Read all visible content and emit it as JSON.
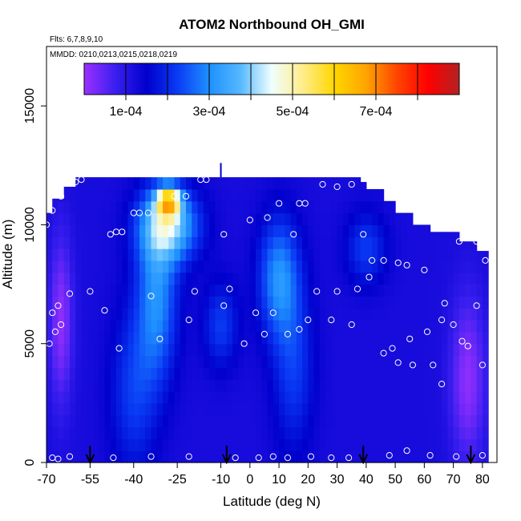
{
  "chart_data": {
    "type": "heatmap",
    "title": "ATOM2 Northbound OH_GMI",
    "notes": {
      "flights": "Flts: 6,7,8,9,10",
      "dates": "MMDD: 0210,0213,0215,0218,0219"
    },
    "xlabel": "Latitude (deg N)",
    "ylabel": "Altitude (m)",
    "xlim": [
      -70,
      85
    ],
    "ylim": [
      0,
      17500
    ],
    "x_ticks": [
      -70,
      -55,
      -40,
      -25,
      -10,
      0,
      10,
      20,
      30,
      40,
      50,
      60,
      70,
      80
    ],
    "y_ticks": [
      0,
      5000,
      10000,
      15000
    ],
    "colorbar": {
      "range": [
        0,
        0.0009
      ],
      "tick_values": [
        0.0001,
        0.0003,
        0.0005,
        0.0007
      ],
      "tick_labels": [
        "1e-04",
        "3e-04",
        "5e-04",
        "7e-04"
      ],
      "colors": [
        "#9b30ff",
        "#3a1ff0",
        "#0000cd",
        "#0a3cf5",
        "#1e90ff",
        "#55b8ff",
        "#f0ffff",
        "#ffec8b",
        "#ffd700",
        "#ffa500",
        "#ff4500",
        "#ff0000",
        "#b22222"
      ]
    },
    "profile_top": [
      {
        "lat": -70,
        "alt": 10500
      },
      {
        "lat": -68,
        "alt": 11100
      },
      {
        "lat": -65,
        "alt": 11600
      },
      {
        "lat": -60,
        "alt": 12000
      },
      {
        "lat": -50,
        "alt": 12000
      },
      {
        "lat": -40,
        "alt": 12000
      },
      {
        "lat": -25,
        "alt": 12000
      },
      {
        "lat": -10,
        "alt": 12000
      },
      {
        "lat": 0,
        "alt": 12000
      },
      {
        "lat": 10,
        "alt": 12000
      },
      {
        "lat": 20,
        "alt": 12000
      },
      {
        "lat": 30,
        "alt": 12000
      },
      {
        "lat": 37,
        "alt": 11800
      },
      {
        "lat": 40,
        "alt": 11500
      },
      {
        "lat": 45,
        "alt": 11000
      },
      {
        "lat": 50,
        "alt": 10500
      },
      {
        "lat": 55,
        "alt": 10000
      },
      {
        "lat": 62,
        "alt": 9700
      },
      {
        "lat": 72,
        "alt": 9300
      },
      {
        "lat": 78,
        "alt": 8900
      },
      {
        "lat": 81,
        "alt": 8500
      }
    ],
    "field_features": [
      {
        "lat": -65,
        "alt": 6000,
        "sx": 4,
        "sy": 3500,
        "value": 1e-05
      },
      {
        "lat": -40,
        "alt": 3000,
        "sx": 8,
        "sy": 3500,
        "value": 0.00022
      },
      {
        "lat": -32,
        "alt": 7000,
        "sx": 7,
        "sy": 3500,
        "value": 0.0003
      },
      {
        "lat": -28,
        "alt": 10000,
        "sx": 10,
        "sy": 1500,
        "value": 0.0004
      },
      {
        "lat": -28,
        "alt": 11000,
        "sx": 4,
        "sy": 600,
        "value": 0.0005
      },
      {
        "lat": -10,
        "alt": 5800,
        "sx": 6,
        "sy": 1800,
        "value": 0.00022
      },
      {
        "lat": 15,
        "alt": 4000,
        "sx": 7,
        "sy": 3500,
        "value": 0.00022
      },
      {
        "lat": 10,
        "alt": 7800,
        "sx": 7,
        "sy": 2500,
        "value": 0.0003
      },
      {
        "lat": 40,
        "alt": 9000,
        "sx": 7,
        "sy": 1500,
        "value": 0.00022
      },
      {
        "lat": 75,
        "alt": 3500,
        "sx": 6,
        "sy": 3500,
        "value": 1e-05
      }
    ],
    "flight_points": [
      {
        "lat": -68,
        "alt": 200
      },
      {
        "lat": -66,
        "alt": 150
      },
      {
        "lat": -62,
        "alt": 250
      },
      {
        "lat": -47,
        "alt": 200
      },
      {
        "lat": -34,
        "alt": 250
      },
      {
        "lat": -21,
        "alt": 250
      },
      {
        "lat": -5,
        "alt": 200
      },
      {
        "lat": 3,
        "alt": 200
      },
      {
        "lat": 8,
        "alt": 250
      },
      {
        "lat": 13,
        "alt": 200
      },
      {
        "lat": 21,
        "alt": 250
      },
      {
        "lat": 28,
        "alt": 200
      },
      {
        "lat": 34,
        "alt": 200
      },
      {
        "lat": 48,
        "alt": 300
      },
      {
        "lat": 54,
        "alt": 500
      },
      {
        "lat": 62,
        "alt": 300
      },
      {
        "lat": 71,
        "alt": 250
      },
      {
        "lat": 80,
        "alt": 300
      },
      {
        "lat": -69,
        "alt": 5000
      },
      {
        "lat": -67,
        "alt": 5500
      },
      {
        "lat": -65,
        "alt": 5800
      },
      {
        "lat": -68,
        "alt": 6300
      },
      {
        "lat": -66,
        "alt": 6600
      },
      {
        "lat": -62,
        "alt": 7100
      },
      {
        "lat": -55,
        "alt": 7200
      },
      {
        "lat": -50,
        "alt": 6400
      },
      {
        "lat": -45,
        "alt": 4800
      },
      {
        "lat": -34,
        "alt": 7000
      },
      {
        "lat": -31,
        "alt": 5200
      },
      {
        "lat": -21,
        "alt": 6000
      },
      {
        "lat": -19,
        "alt": 7200
      },
      {
        "lat": -9,
        "alt": 6600
      },
      {
        "lat": -7,
        "alt": 7300
      },
      {
        "lat": -2,
        "alt": 5000
      },
      {
        "lat": 2,
        "alt": 6300
      },
      {
        "lat": 5,
        "alt": 5400
      },
      {
        "lat": 8,
        "alt": 6300
      },
      {
        "lat": 13,
        "alt": 5400
      },
      {
        "lat": 17,
        "alt": 5600
      },
      {
        "lat": 20,
        "alt": 6000
      },
      {
        "lat": 23,
        "alt": 7200
      },
      {
        "lat": 28,
        "alt": 6000
      },
      {
        "lat": 30,
        "alt": 7200
      },
      {
        "lat": 35,
        "alt": 5800
      },
      {
        "lat": 37,
        "alt": 7300
      },
      {
        "lat": 41,
        "alt": 7800
      },
      {
        "lat": 46,
        "alt": 4600
      },
      {
        "lat": 49,
        "alt": 4800
      },
      {
        "lat": 51,
        "alt": 4200
      },
      {
        "lat": 56,
        "alt": 4100
      },
      {
        "lat": 55,
        "alt": 5200
      },
      {
        "lat": 61,
        "alt": 5500
      },
      {
        "lat": 63,
        "alt": 4100
      },
      {
        "lat": 66,
        "alt": 3300
      },
      {
        "lat": 67,
        "alt": 6700
      },
      {
        "lat": 66,
        "alt": 6000
      },
      {
        "lat": 70,
        "alt": 5800
      },
      {
        "lat": 73,
        "alt": 5100
      },
      {
        "lat": 75,
        "alt": 4900
      },
      {
        "lat": 78,
        "alt": 6600
      },
      {
        "lat": 80,
        "alt": 4100
      },
      {
        "lat": 42,
        "alt": 8500
      },
      {
        "lat": 46,
        "alt": 8500
      },
      {
        "lat": 51,
        "alt": 8400
      },
      {
        "lat": 54,
        "alt": 8300
      },
      {
        "lat": 60,
        "alt": 8100
      },
      {
        "lat": 72,
        "alt": 9300
      },
      {
        "lat": 78,
        "alt": 9300
      },
      {
        "lat": 81,
        "alt": 8500
      },
      {
        "lat": 39,
        "alt": 9600
      },
      {
        "lat": 15,
        "alt": 9600
      },
      {
        "lat": -9,
        "alt": 9600
      },
      {
        "lat": -48,
        "alt": 9600
      },
      {
        "lat": -46,
        "alt": 9700
      },
      {
        "lat": -44,
        "alt": 9700
      },
      {
        "lat": -40,
        "alt": 10500
      },
      {
        "lat": -38,
        "alt": 10500
      },
      {
        "lat": -35,
        "alt": 10500
      },
      {
        "lat": -70,
        "alt": 10000
      },
      {
        "lat": -68,
        "alt": 10600
      },
      {
        "lat": -65,
        "alt": 11200
      },
      {
        "lat": -60,
        "alt": 11800
      },
      {
        "lat": -58,
        "alt": 11900
      },
      {
        "lat": -26,
        "alt": 11200
      },
      {
        "lat": -22,
        "alt": 11200
      },
      {
        "lat": -17,
        "alt": 11900
      },
      {
        "lat": -15,
        "alt": 11900
      },
      {
        "lat": 0,
        "alt": 10200
      },
      {
        "lat": 6,
        "alt": 10300
      },
      {
        "lat": 10,
        "alt": 10900
      },
      {
        "lat": 17,
        "alt": 10900
      },
      {
        "lat": 19,
        "alt": 10900
      },
      {
        "lat": 25,
        "alt": 11700
      },
      {
        "lat": 30,
        "alt": 11600
      },
      {
        "lat": 35,
        "alt": 11700
      }
    ],
    "arrow_lats": [
      -55,
      -8,
      39,
      76
    ]
  }
}
